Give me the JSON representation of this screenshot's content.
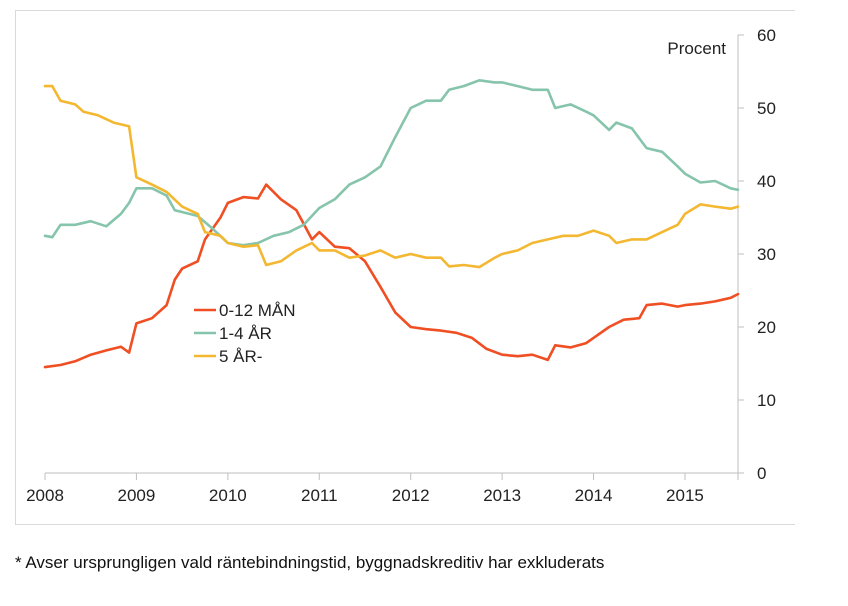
{
  "chart_data": {
    "type": "line",
    "unit_label": "Procent",
    "y_axis_position": "right",
    "ylim": [
      0,
      60
    ],
    "yticks": [
      0,
      10,
      20,
      30,
      40,
      50,
      60
    ],
    "xlim": [
      2008.0,
      2015.58
    ],
    "x_tick_labels": [
      "2008",
      "2009",
      "2010",
      "2011",
      "2012",
      "2013",
      "2014",
      "2015"
    ],
    "legend_position": "center-left",
    "grid": false,
    "series": [
      {
        "name": "0-12 MÅN",
        "color": "#f04e23",
        "points": [
          [
            2008.0,
            14.5
          ],
          [
            2008.17,
            14.8
          ],
          [
            2008.33,
            15.3
          ],
          [
            2008.5,
            16.2
          ],
          [
            2008.67,
            16.8
          ],
          [
            2008.83,
            17.3
          ],
          [
            2008.92,
            16.5
          ],
          [
            2009.0,
            20.5
          ],
          [
            2009.17,
            21.2
          ],
          [
            2009.33,
            23.0
          ],
          [
            2009.42,
            26.5
          ],
          [
            2009.5,
            28.0
          ],
          [
            2009.67,
            29.0
          ],
          [
            2009.75,
            32.0
          ],
          [
            2009.92,
            35.0
          ],
          [
            2010.0,
            37.0
          ],
          [
            2010.17,
            37.8
          ],
          [
            2010.33,
            37.6
          ],
          [
            2010.42,
            39.5
          ],
          [
            2010.58,
            37.5
          ],
          [
            2010.75,
            36.0
          ],
          [
            2010.92,
            32.0
          ],
          [
            2011.0,
            33.0
          ],
          [
            2011.17,
            31.0
          ],
          [
            2011.33,
            30.8
          ],
          [
            2011.5,
            29.0
          ],
          [
            2011.67,
            25.5
          ],
          [
            2011.83,
            22.0
          ],
          [
            2012.0,
            20.0
          ],
          [
            2012.17,
            19.7
          ],
          [
            2012.33,
            19.5
          ],
          [
            2012.5,
            19.2
          ],
          [
            2012.67,
            18.5
          ],
          [
            2012.83,
            17.0
          ],
          [
            2013.0,
            16.2
          ],
          [
            2013.17,
            16.0
          ],
          [
            2013.33,
            16.2
          ],
          [
            2013.5,
            15.5
          ],
          [
            2013.58,
            17.5
          ],
          [
            2013.75,
            17.2
          ],
          [
            2013.92,
            17.8
          ],
          [
            2014.0,
            18.5
          ],
          [
            2014.17,
            20.0
          ],
          [
            2014.33,
            21.0
          ],
          [
            2014.5,
            21.2
          ],
          [
            2014.58,
            23.0
          ],
          [
            2014.75,
            23.2
          ],
          [
            2014.92,
            22.8
          ],
          [
            2015.0,
            23.0
          ],
          [
            2015.17,
            23.2
          ],
          [
            2015.33,
            23.5
          ],
          [
            2015.5,
            24.0
          ],
          [
            2015.58,
            24.5
          ]
        ]
      },
      {
        "name": "1-4 ÅR",
        "color": "#86c4ac",
        "points": [
          [
            2008.0,
            32.5
          ],
          [
            2008.08,
            32.3
          ],
          [
            2008.17,
            34.0
          ],
          [
            2008.33,
            34.0
          ],
          [
            2008.5,
            34.5
          ],
          [
            2008.67,
            33.8
          ],
          [
            2008.83,
            35.5
          ],
          [
            2008.92,
            37.0
          ],
          [
            2009.0,
            39.0
          ],
          [
            2009.17,
            39.0
          ],
          [
            2009.33,
            38.0
          ],
          [
            2009.42,
            36.0
          ],
          [
            2009.58,
            35.5
          ],
          [
            2009.67,
            35.2
          ],
          [
            2009.83,
            33.5
          ],
          [
            2010.0,
            31.5
          ],
          [
            2010.17,
            31.2
          ],
          [
            2010.33,
            31.5
          ],
          [
            2010.5,
            32.5
          ],
          [
            2010.67,
            33.0
          ],
          [
            2010.83,
            34.0
          ],
          [
            2011.0,
            36.3
          ],
          [
            2011.17,
            37.5
          ],
          [
            2011.33,
            39.5
          ],
          [
            2011.5,
            40.5
          ],
          [
            2011.67,
            42.0
          ],
          [
            2011.83,
            46.0
          ],
          [
            2012.0,
            50.0
          ],
          [
            2012.17,
            51.0
          ],
          [
            2012.33,
            51.0
          ],
          [
            2012.42,
            52.5
          ],
          [
            2012.58,
            53.0
          ],
          [
            2012.75,
            53.8
          ],
          [
            2012.92,
            53.5
          ],
          [
            2013.0,
            53.5
          ],
          [
            2013.17,
            53.0
          ],
          [
            2013.33,
            52.5
          ],
          [
            2013.5,
            52.5
          ],
          [
            2013.58,
            50.0
          ],
          [
            2013.75,
            50.5
          ],
          [
            2013.92,
            49.5
          ],
          [
            2014.0,
            49.0
          ],
          [
            2014.17,
            47.0
          ],
          [
            2014.25,
            48.0
          ],
          [
            2014.42,
            47.2
          ],
          [
            2014.58,
            44.5
          ],
          [
            2014.75,
            44.0
          ],
          [
            2014.92,
            42.0
          ],
          [
            2015.0,
            41.0
          ],
          [
            2015.17,
            39.8
          ],
          [
            2015.33,
            40.0
          ],
          [
            2015.5,
            39.0
          ],
          [
            2015.58,
            38.8
          ]
        ]
      },
      {
        "name": "5 ÅR-",
        "color": "#f4b731",
        "points": [
          [
            2008.0,
            53.0
          ],
          [
            2008.08,
            53.0
          ],
          [
            2008.17,
            51.0
          ],
          [
            2008.33,
            50.5
          ],
          [
            2008.42,
            49.5
          ],
          [
            2008.58,
            49.0
          ],
          [
            2008.75,
            48.0
          ],
          [
            2008.92,
            47.5
          ],
          [
            2009.0,
            40.5
          ],
          [
            2009.17,
            39.5
          ],
          [
            2009.33,
            38.5
          ],
          [
            2009.5,
            36.5
          ],
          [
            2009.67,
            35.5
          ],
          [
            2009.75,
            33.0
          ],
          [
            2009.92,
            32.5
          ],
          [
            2010.0,
            31.5
          ],
          [
            2010.17,
            31.0
          ],
          [
            2010.33,
            31.2
          ],
          [
            2010.42,
            28.5
          ],
          [
            2010.58,
            29.0
          ],
          [
            2010.75,
            30.5
          ],
          [
            2010.92,
            31.5
          ],
          [
            2011.0,
            30.5
          ],
          [
            2011.17,
            30.5
          ],
          [
            2011.33,
            29.5
          ],
          [
            2011.5,
            29.8
          ],
          [
            2011.67,
            30.5
          ],
          [
            2011.83,
            29.5
          ],
          [
            2012.0,
            30.0
          ],
          [
            2012.17,
            29.5
          ],
          [
            2012.33,
            29.5
          ],
          [
            2012.42,
            28.3
          ],
          [
            2012.58,
            28.5
          ],
          [
            2012.75,
            28.2
          ],
          [
            2012.92,
            29.5
          ],
          [
            2013.0,
            30.0
          ],
          [
            2013.17,
            30.5
          ],
          [
            2013.33,
            31.5
          ],
          [
            2013.5,
            32.0
          ],
          [
            2013.67,
            32.5
          ],
          [
            2013.83,
            32.5
          ],
          [
            2014.0,
            33.2
          ],
          [
            2014.17,
            32.5
          ],
          [
            2014.25,
            31.5
          ],
          [
            2014.42,
            32.0
          ],
          [
            2014.58,
            32.0
          ],
          [
            2014.75,
            33.0
          ],
          [
            2014.92,
            34.0
          ],
          [
            2015.0,
            35.5
          ],
          [
            2015.17,
            36.8
          ],
          [
            2015.33,
            36.5
          ],
          [
            2015.5,
            36.2
          ],
          [
            2015.58,
            36.5
          ]
        ]
      }
    ]
  },
  "footnote": "* Avser ursprungligen vald räntebindningstid, byggnadskreditiv har exkluderats"
}
